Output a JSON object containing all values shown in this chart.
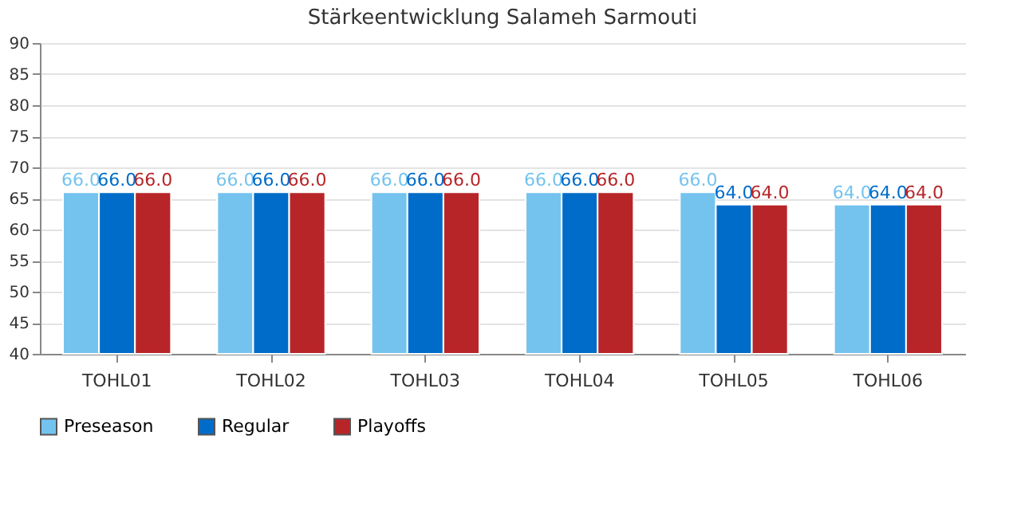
{
  "chart_data": {
    "type": "bar",
    "title": "Stärkeentwicklung Salameh Sarmouti",
    "categories": [
      "TOHL01",
      "TOHL02",
      "TOHL03",
      "TOHL04",
      "TOHL05",
      "TOHL06"
    ],
    "series": [
      {
        "name": "Preseason",
        "color": "#74c3ef",
        "values": [
          66,
          66,
          66,
          66,
          66,
          64
        ],
        "value_labels": [
          "66.0",
          "66.0",
          "66.0",
          "66.0",
          "66.0",
          "64.0"
        ]
      },
      {
        "name": "Regular",
        "color": "#006cc9",
        "values": [
          66,
          66,
          66,
          66,
          64,
          64
        ],
        "value_labels": [
          "66.0",
          "66.0",
          "66.0",
          "66.0",
          "64.0",
          "64.0"
        ]
      },
      {
        "name": "Playoffs",
        "color": "#b82528",
        "values": [
          66,
          66,
          66,
          66,
          64,
          64
        ],
        "value_labels": [
          "66.0",
          "66.0",
          "66.0",
          "66.0",
          "64.0",
          "64.0"
        ]
      }
    ],
    "ylim": [
      40,
      90
    ],
    "yticks": [
      40,
      45,
      50,
      55,
      60,
      65,
      70,
      75,
      80,
      85,
      90
    ],
    "grid": "y",
    "legend": "bottom"
  }
}
